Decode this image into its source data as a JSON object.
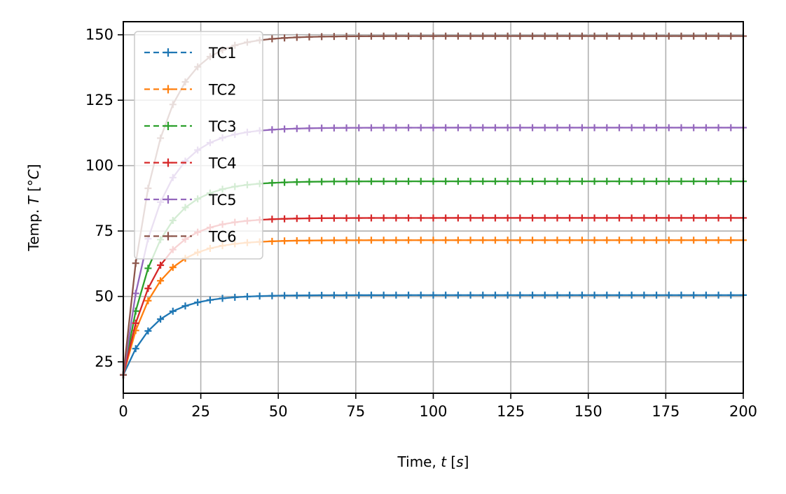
{
  "chart_data": {
    "type": "line",
    "title": "",
    "xlabel": {
      "prefix": "Time, ",
      "var": "t",
      "unit_open": " [",
      "unit": "s",
      "unit_close": "]"
    },
    "ylabel": {
      "prefix": "Temp. ",
      "var": "T",
      "unit_open": "  [",
      "unit": "°C",
      "unit_close": "]"
    },
    "xlim": [
      0,
      200
    ],
    "ylim": [
      13,
      155
    ],
    "xticks": [
      0,
      25,
      50,
      75,
      100,
      125,
      150,
      175,
      200
    ],
    "yticks": [
      25,
      50,
      75,
      100,
      125,
      150
    ],
    "grid": true,
    "legend_position": "top-left",
    "model": {
      "description": "T(t) = T0 + (Tss - T0) * (1 - exp(-t/tau))",
      "T0": 20,
      "tau": 10,
      "sample_interval": 4,
      "t_max": 200
    },
    "series": [
      {
        "name": "TC1",
        "color": "#1f77b4",
        "steady_state": 50.5
      },
      {
        "name": "TC2",
        "color": "#ff7f0e",
        "steady_state": 71.5
      },
      {
        "name": "TC3",
        "color": "#2ca02c",
        "steady_state": 94
      },
      {
        "name": "TC4",
        "color": "#d62728",
        "steady_state": 80
      },
      {
        "name": "TC5",
        "color": "#9467bd",
        "steady_state": 114.5
      },
      {
        "name": "TC6",
        "color": "#8c564b",
        "steady_state": 149.5
      }
    ]
  }
}
